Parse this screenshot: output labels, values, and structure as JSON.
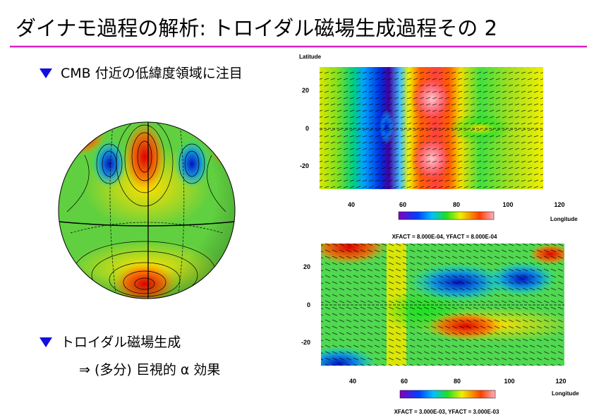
{
  "title": "ダイナモ過程の解析: トロイダル磁場生成過程その 2",
  "bullets": [
    {
      "text": "CMB 付近の低緯度領域に注目"
    },
    {
      "text": "トロイダル磁場生成",
      "sub": "⇒ (多分) 巨視的 α 効果"
    }
  ],
  "panels": [
    {
      "y_label": "Latitude",
      "y_ticks": [
        "20",
        "0",
        "-20"
      ],
      "x_ticks": [
        "40",
        "60",
        "80",
        "100",
        "120"
      ],
      "x_label": "Longitude",
      "caption": "XFACT = 8.000E-04, YFACT = 8.000E-04"
    },
    {
      "y_ticks": [
        "20",
        "0",
        "-20"
      ],
      "x_ticks": [
        "40",
        "60",
        "80",
        "100",
        "120"
      ],
      "x_label": "Longitude",
      "caption": "XFACT = 3.000E-03, YFACT = 3.000E-03"
    }
  ]
}
